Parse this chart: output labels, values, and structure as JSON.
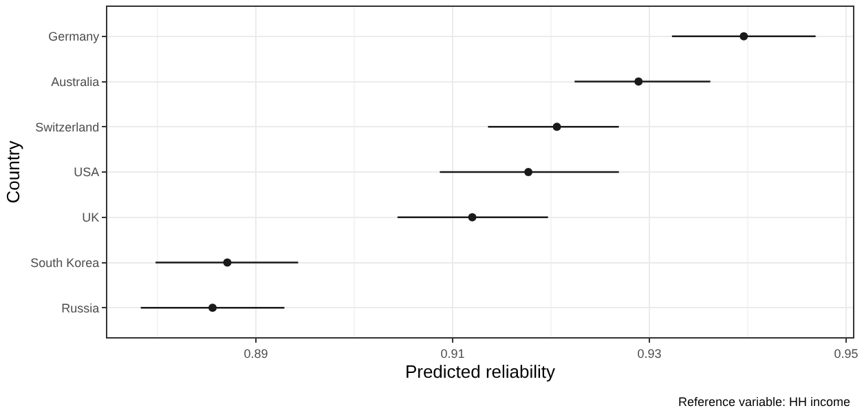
{
  "chart_data": {
    "type": "scatter",
    "orientation": "horizontal",
    "xlabel": "Predicted reliability",
    "ylabel": "Country",
    "categories": [
      "Germany",
      "Australia",
      "Switzerland",
      "USA",
      "UK",
      "South Korea",
      "Russia"
    ],
    "values": [
      0.9396,
      0.9289,
      0.9206,
      0.9177,
      0.912,
      0.8871,
      0.8856
    ],
    "errors": [
      [
        0.9323,
        0.9469
      ],
      [
        0.9224,
        0.9362
      ],
      [
        0.9136,
        0.9269
      ],
      [
        0.9087,
        0.9269
      ],
      [
        0.9044,
        0.9197
      ],
      [
        0.8798,
        0.8943
      ],
      [
        0.8783,
        0.8929
      ]
    ],
    "color": "#1a1a1a",
    "marker": "circle",
    "xlim": [
      0.8749,
      0.9507
    ],
    "xticks": [
      0.89,
      0.91,
      0.93,
      0.95
    ],
    "grid": true,
    "annotations": [
      "Reference variable: HH income"
    ]
  }
}
